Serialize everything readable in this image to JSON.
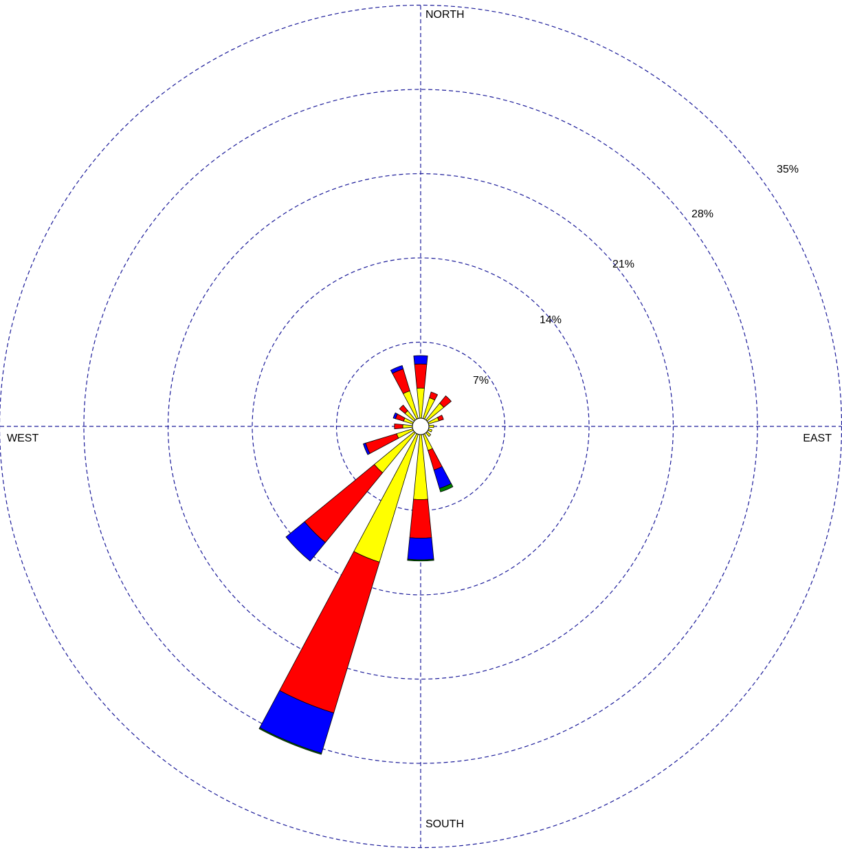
{
  "chart_data": {
    "type": "wind-rose",
    "title": "",
    "directions": {
      "north": "NORTH",
      "south": "SOUTH",
      "east": "EAST",
      "west": "WEST"
    },
    "rings": [
      {
        "value": 7,
        "label": "7%"
      },
      {
        "value": 14,
        "label": "14%"
      },
      {
        "value": 21,
        "label": "21%"
      },
      {
        "value": 28,
        "label": "28%"
      },
      {
        "value": 35,
        "label": "35%"
      }
    ],
    "rmax": 35,
    "calm_circle": true,
    "sector_width_deg": 11.25,
    "speed_classes": [
      {
        "color": "#ffff00"
      },
      {
        "color": "#ff0000"
      },
      {
        "color": "#0000ff"
      },
      {
        "color": "#008000"
      }
    ],
    "sectors": [
      {
        "direction_deg": 0,
        "stack": [
          2.5,
          4.5,
          5.2,
          5.2
        ]
      },
      {
        "direction_deg": 22.5,
        "stack": [
          1.8,
          2.3,
          2.3,
          2.3
        ]
      },
      {
        "direction_deg": 45,
        "stack": [
          1.8,
          2.6,
          2.6,
          2.6
        ]
      },
      {
        "direction_deg": 67.5,
        "stack": [
          0.9,
          1.3,
          1.3,
          1.3
        ]
      },
      {
        "direction_deg": 90,
        "stack": [
          0.4,
          0.4,
          0.4,
          0.4
        ]
      },
      {
        "direction_deg": 112.5,
        "stack": [
          0.3,
          0.3,
          0.3,
          0.3
        ]
      },
      {
        "direction_deg": 135,
        "stack": [
          0.4,
          0.4,
          0.4,
          0.4
        ]
      },
      {
        "direction_deg": 157.5,
        "stack": [
          1.4,
          3.1,
          4.7,
          5.0
        ]
      },
      {
        "direction_deg": 180,
        "stack": [
          5.4,
          8.6,
          10.4,
          10.5
        ]
      },
      {
        "direction_deg": 202.5,
        "stack": [
          11.1,
          24.2,
          27.7,
          27.8
        ]
      },
      {
        "direction_deg": 225,
        "stack": [
          4.3,
          11.8,
          13.8,
          13.8
        ]
      },
      {
        "direction_deg": 247.5,
        "stack": [
          1.4,
          4.1,
          4.3,
          4.3
        ]
      },
      {
        "direction_deg": 270,
        "stack": [
          0.8,
          1.5,
          1.5,
          1.5
        ]
      },
      {
        "direction_deg": 292.5,
        "stack": [
          0.8,
          1.5,
          1.7,
          1.7
        ]
      },
      {
        "direction_deg": 315,
        "stack": [
          1.0,
          1.6,
          1.6,
          1.6
        ]
      },
      {
        "direction_deg": 337.5,
        "stack": [
          2.4,
          4.3,
          4.6,
          4.6
        ]
      }
    ]
  }
}
